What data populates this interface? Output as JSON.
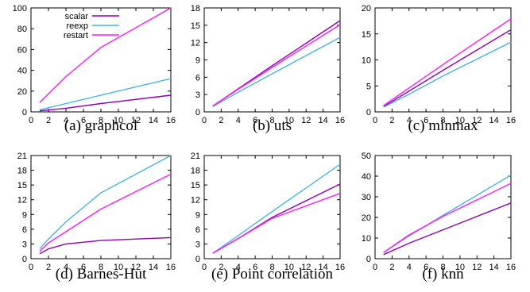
{
  "colors": {
    "scalar": "#8b00b5",
    "reexp": "#48b4e0",
    "restart": "#ff1aff"
  },
  "legend": [
    "scalar",
    "reexp",
    "restart"
  ],
  "chart_data": [
    {
      "type": "line",
      "caption": "(a) graphcol",
      "xlim": [
        0,
        16
      ],
      "ylim": [
        0,
        100
      ],
      "xticks": [
        0,
        2,
        4,
        6,
        8,
        10,
        12,
        14,
        16
      ],
      "yticks": [
        0,
        20,
        40,
        60,
        80,
        100
      ],
      "x": [
        1,
        4,
        8,
        16
      ],
      "series": [
        {
          "name": "scalar",
          "values": [
            1,
            3.5,
            8,
            16
          ]
        },
        {
          "name": "reexp",
          "values": [
            2,
            8,
            16,
            32
          ]
        },
        {
          "name": "restart",
          "values": [
            9,
            34,
            62,
            100
          ]
        }
      ]
    },
    {
      "type": "line",
      "caption": "(b) uts",
      "xlim": [
        0,
        16
      ],
      "ylim": [
        0,
        18
      ],
      "xticks": [
        0,
        2,
        4,
        6,
        8,
        10,
        12,
        14,
        16
      ],
      "yticks": [
        0,
        3,
        6,
        9,
        12,
        15,
        18
      ],
      "x": [
        1,
        4,
        8,
        16
      ],
      "series": [
        {
          "name": "scalar",
          "values": [
            1,
            4,
            8,
            15.8
          ]
        },
        {
          "name": "reexp",
          "values": [
            0.9,
            3.4,
            6.6,
            12.9
          ]
        },
        {
          "name": "restart",
          "values": [
            1,
            3.9,
            7.7,
            15.1
          ]
        }
      ]
    },
    {
      "type": "line",
      "caption": "(c) minmax",
      "xlim": [
        0,
        16
      ],
      "ylim": [
        0,
        20
      ],
      "xticks": [
        0,
        2,
        4,
        6,
        8,
        10,
        12,
        14,
        16
      ],
      "yticks": [
        0,
        5,
        10,
        15,
        20
      ],
      "x": [
        1,
        4,
        8,
        16
      ],
      "series": [
        {
          "name": "scalar",
          "values": [
            1,
            4,
            8,
            15.8
          ]
        },
        {
          "name": "reexp",
          "values": [
            0.9,
            3.4,
            6.9,
            13.4
          ]
        },
        {
          "name": "restart",
          "values": [
            1.2,
            4.6,
            9.1,
            17.9
          ]
        }
      ]
    },
    {
      "type": "line",
      "caption": "(d) Barnes-Hut",
      "xlim": [
        0,
        16
      ],
      "ylim": [
        0,
        21
      ],
      "xticks": [
        0,
        2,
        4,
        6,
        8,
        10,
        12,
        14,
        16
      ],
      "yticks": [
        0,
        3,
        6,
        9,
        12,
        15,
        18,
        21
      ],
      "x": [
        1,
        2,
        4,
        8,
        16
      ],
      "series": [
        {
          "name": "scalar",
          "values": [
            1,
            2,
            3,
            3.7,
            4.3
          ]
        },
        {
          "name": "reexp",
          "values": [
            2,
            4,
            7.5,
            13.4,
            21
          ]
        },
        {
          "name": "restart",
          "values": [
            1.5,
            3.2,
            5.5,
            10.1,
            17.2
          ]
        }
      ]
    },
    {
      "type": "line",
      "caption": "(e) Point correlation",
      "xlim": [
        0,
        16
      ],
      "ylim": [
        0,
        21
      ],
      "xticks": [
        0,
        2,
        4,
        6,
        8,
        10,
        12,
        14,
        16
      ],
      "yticks": [
        0,
        3,
        6,
        9,
        12,
        15,
        18,
        21
      ],
      "x": [
        1,
        4,
        8,
        16
      ],
      "series": [
        {
          "name": "scalar",
          "values": [
            1.1,
            4.1,
            8.4,
            15.2
          ]
        },
        {
          "name": "reexp",
          "values": [
            1.1,
            4.7,
            9.6,
            19.2
          ]
        },
        {
          "name": "restart",
          "values": [
            1.1,
            4.1,
            8.2,
            13.3
          ]
        }
      ]
    },
    {
      "type": "line",
      "caption": "(f) knn",
      "xlim": [
        0,
        16
      ],
      "ylim": [
        0,
        50
      ],
      "xticks": [
        0,
        2,
        4,
        6,
        8,
        10,
        12,
        14,
        16
      ],
      "yticks": [
        0,
        10,
        20,
        30,
        40,
        50
      ],
      "x": [
        1,
        4,
        8,
        16
      ],
      "series": [
        {
          "name": "scalar",
          "values": [
            2,
            7.5,
            14,
            27
          ]
        },
        {
          "name": "reexp",
          "values": [
            3,
            11,
            21,
            40.5
          ]
        },
        {
          "name": "restart",
          "values": [
            3,
            11.5,
            20.5,
            36.5
          ]
        }
      ]
    }
  ]
}
